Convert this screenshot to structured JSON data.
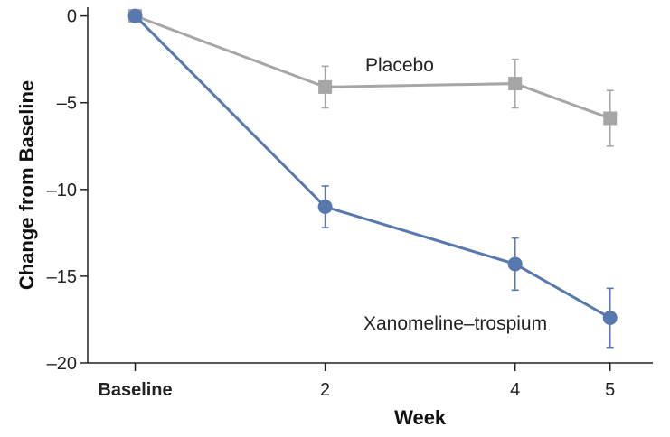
{
  "chart_data": {
    "type": "line",
    "xlabel": "Week",
    "ylabel": "Change from Baseline",
    "x": [
      0,
      2,
      4,
      5
    ],
    "x_tick_labels": [
      "Baseline",
      "2",
      "4",
      "5"
    ],
    "xlim": [
      -0.5,
      5.45
    ],
    "ylim": [
      -20,
      0.5
    ],
    "y_ticks": [
      0,
      -5,
      -10,
      -15,
      -20
    ],
    "y_tick_labels": [
      "0",
      "–5",
      "–10",
      "–15",
      "–20"
    ],
    "grid": false,
    "series": [
      {
        "name": "Placebo",
        "marker": "square",
        "color": "#a6a6a6",
        "values": [
          0,
          -4.1,
          -3.9,
          -5.9
        ],
        "error": [
          [
            0,
            0
          ],
          [
            1.2,
            1.2
          ],
          [
            1.4,
            1.4
          ],
          [
            1.6,
            1.6
          ]
        ]
      },
      {
        "name": "Xanomeline–trospium",
        "marker": "circle",
        "color": "#5878b0",
        "values": [
          0,
          -11.0,
          -14.3,
          -17.4
        ],
        "error": [
          [
            0,
            0
          ],
          [
            1.2,
            1.2
          ],
          [
            1.5,
            1.5
          ],
          [
            1.7,
            1.7
          ]
        ]
      }
    ]
  }
}
